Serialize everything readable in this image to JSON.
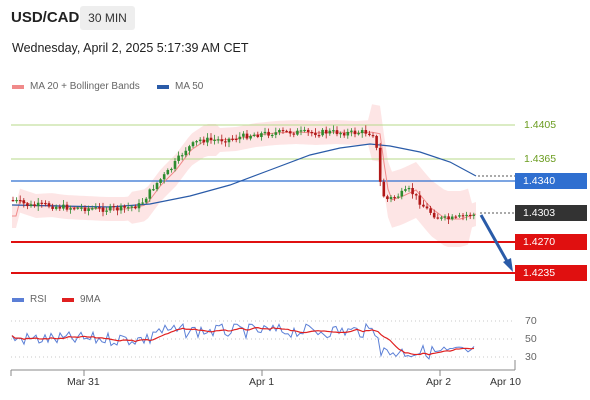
{
  "header": {
    "symbol": "USD/CAD",
    "timeframe": "30 MIN",
    "datetime": "Wednesday, April 2, 2025 5:17:39 AM CET"
  },
  "legend_main": [
    {
      "label": "MA 20 + Bollinger Bands",
      "color": "#f08a8a"
    },
    {
      "label": "MA 50",
      "color": "#2a5ba8"
    }
  ],
  "legend_rsi": [
    {
      "label": "RSI",
      "color": "#5b7fd6"
    },
    {
      "label": "9MA",
      "color": "#e02020"
    }
  ],
  "price_levels": {
    "resistance_2": "1.4405",
    "resistance_1": "1.4365",
    "pivot": "1.4340",
    "current": "1.4303",
    "support_1": "1.4270",
    "support_2": "1.4235"
  },
  "rsi_levels": [
    "70",
    "50",
    "30"
  ],
  "x_axis": [
    "Mar 31",
    "Apr 1",
    "Apr 2",
    "Apr 10"
  ],
  "colors": {
    "resistance": "#9acd6a",
    "pivot": "#2f6fd0",
    "support": "#e01010",
    "current": "#333333",
    "bullish": "#2e8b2e",
    "bearish": "#b01818",
    "bollinger": "#fde0e0",
    "arrow": "#2a5ba8"
  }
}
